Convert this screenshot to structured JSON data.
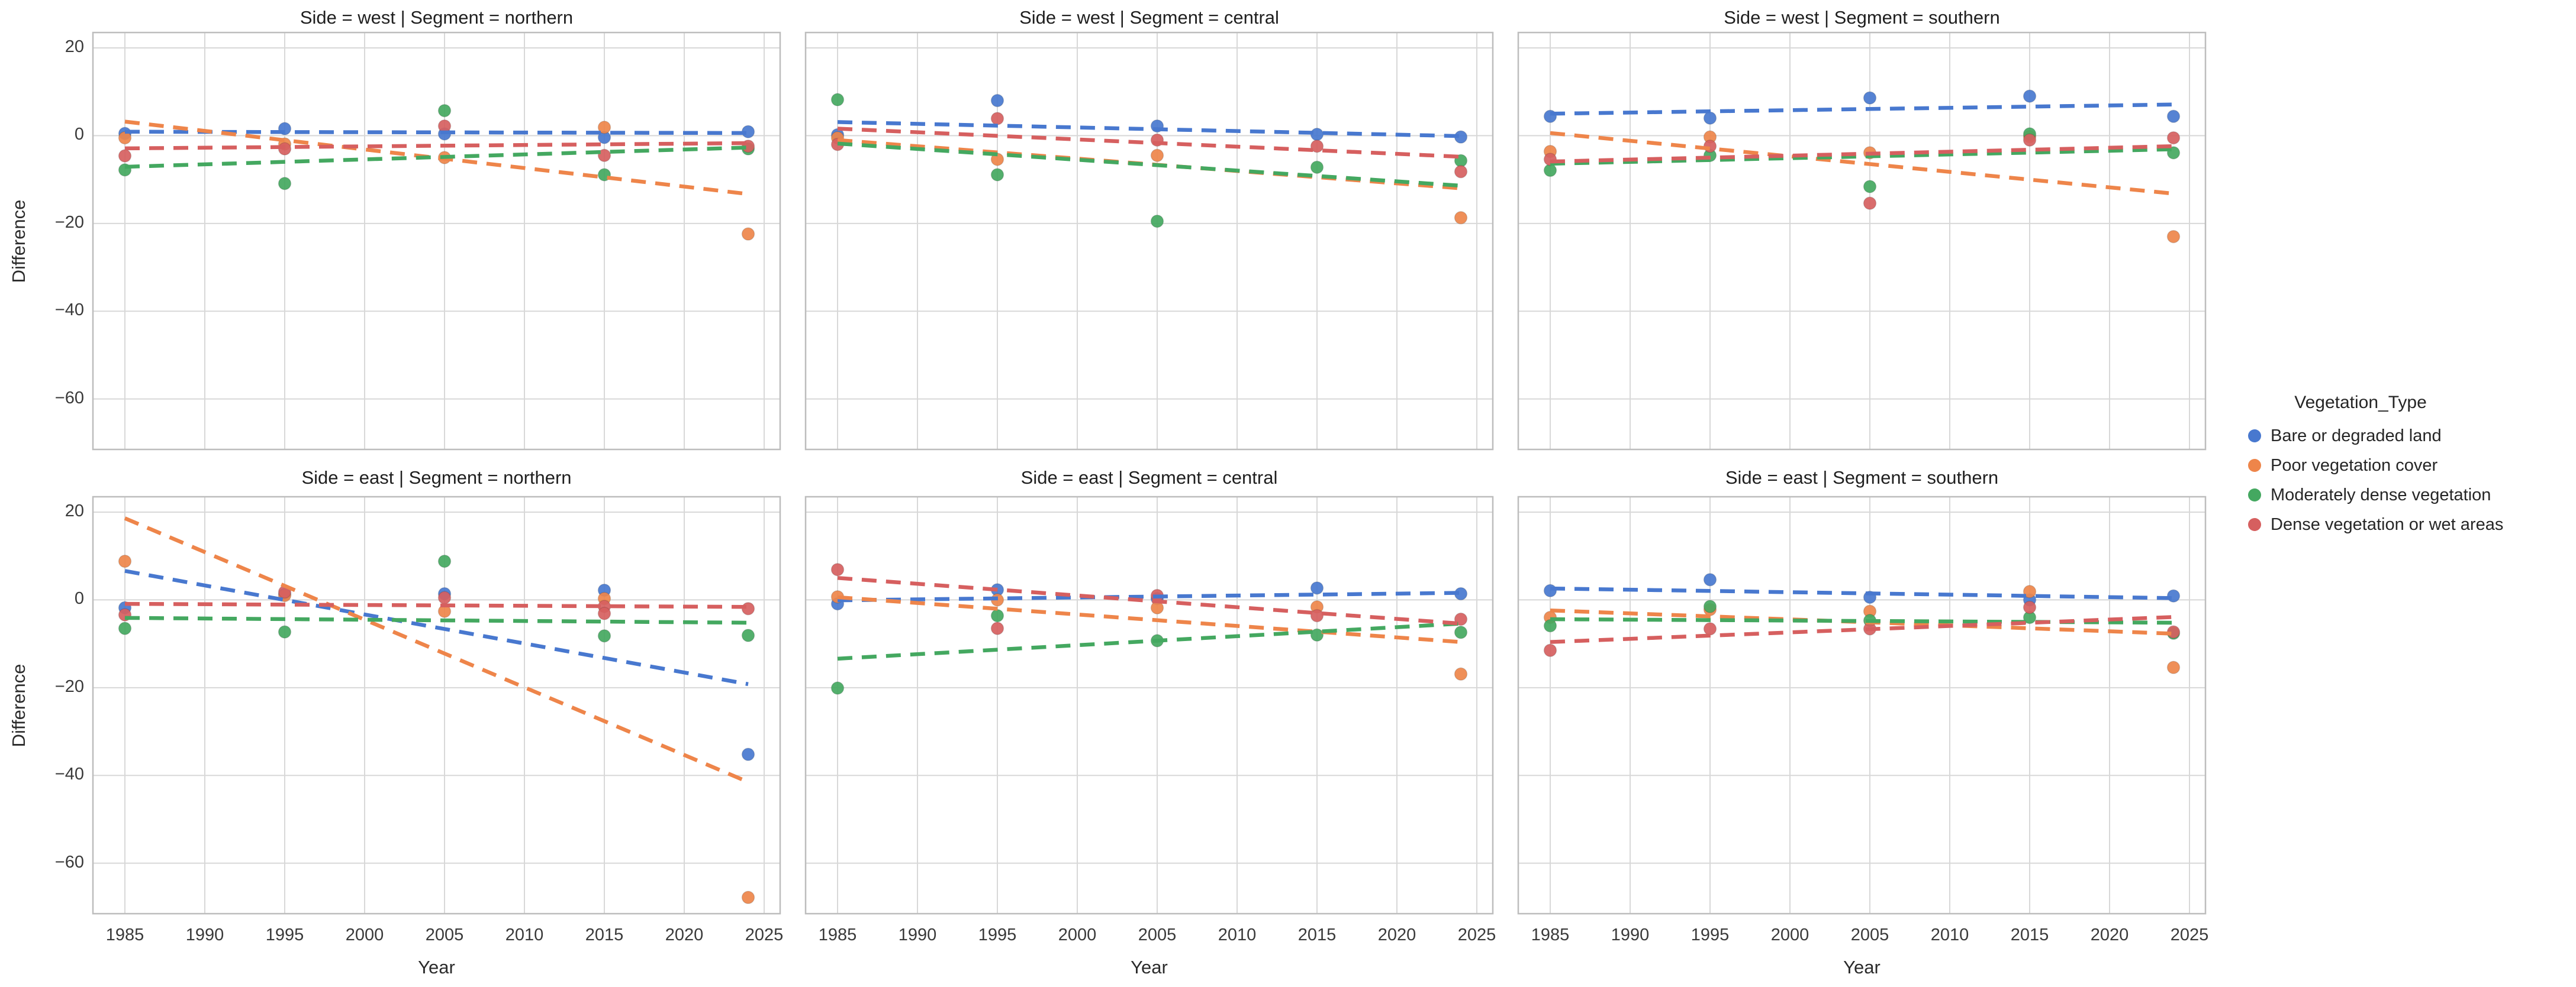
{
  "figure": {
    "background": "#ffffff"
  },
  "legend": {
    "title": "Vegetation_Type",
    "position": "center right",
    "entries": [
      {
        "label": "Bare or degraded land",
        "color": "#4878CF"
      },
      {
        "label": "Poor vegetation cover",
        "color": "#EE854A"
      },
      {
        "label": "Moderately dense vegetation",
        "color": "#44A860"
      },
      {
        "label": "Dense vegetation or wet areas",
        "color": "#D65F5F"
      }
    ]
  },
  "chart_data": {
    "type": "scatter",
    "subtype": "faceted scatter with dashed linear trend lines (seaborn lmplot style)",
    "x_label": "Year",
    "y_label": "Difference",
    "x_ticks": [
      1985,
      1990,
      1995,
      2000,
      2005,
      2010,
      2015,
      2020,
      2025
    ],
    "y_ticks": [
      20,
      0,
      -20,
      -40,
      -60
    ],
    "xlim": [
      1983,
      2026
    ],
    "ylim": [
      -71.5,
      23.5
    ],
    "grid": true,
    "grid_color": "#d8d8d8",
    "spine_color": "#bdbdbd",
    "panels": [
      {
        "side": "west",
        "segment": "northern",
        "title": "Side = west | Segment = northern",
        "series": [
          {
            "key": "bare",
            "name": "Bare or degraded land",
            "color": "#4878CF",
            "points": [
              [
                1985,
                0.5
              ],
              [
                1995,
                1.6
              ],
              [
                2005,
                0.4
              ],
              [
                2015,
                -0.4
              ],
              [
                2024,
                0.9
              ]
            ],
            "trend": {
              "x": [
                1985,
                2024
              ],
              "y": [
                0.9,
                0.6
              ]
            }
          },
          {
            "key": "poor",
            "name": "Poor vegetation cover",
            "color": "#EE854A",
            "points": [
              [
                1985,
                -0.5
              ],
              [
                1995,
                -1.9
              ],
              [
                2005,
                -5.0
              ],
              [
                2015,
                1.9
              ],
              [
                2024,
                -22.4
              ]
            ],
            "trend": {
              "x": [
                1985,
                2024
              ],
              "y": [
                3.2,
                -13.3
              ]
            }
          },
          {
            "key": "moderate",
            "name": "Moderately dense vegetation",
            "color": "#44A860",
            "points": [
              [
                1985,
                -7.8
              ],
              [
                1995,
                -10.9
              ],
              [
                2005,
                5.7
              ],
              [
                2015,
                -8.9
              ],
              [
                2024,
                -3.0
              ]
            ],
            "trend": {
              "x": [
                1985,
                2024
              ],
              "y": [
                -7.1,
                -2.7
              ]
            }
          },
          {
            "key": "dense",
            "name": "Dense vegetation or wet areas",
            "color": "#D65F5F",
            "points": [
              [
                1985,
                -4.6
              ],
              [
                1995,
                -3.0
              ],
              [
                2005,
                2.2
              ],
              [
                2015,
                -4.5
              ],
              [
                2024,
                -2.4
              ]
            ],
            "trend": {
              "x": [
                1985,
                2024
              ],
              "y": [
                -2.9,
                -1.7
              ]
            }
          }
        ]
      },
      {
        "side": "west",
        "segment": "central",
        "title": "Side = west | Segment = central",
        "series": [
          {
            "key": "bare",
            "name": "Bare or degraded land",
            "color": "#4878CF",
            "points": [
              [
                1985,
                0.2
              ],
              [
                1995,
                8.0
              ],
              [
                2005,
                2.2
              ],
              [
                2015,
                0.3
              ],
              [
                2024,
                -0.3
              ]
            ],
            "trend": {
              "x": [
                1985,
                2024
              ],
              "y": [
                3.1,
                -0.1
              ]
            }
          },
          {
            "key": "poor",
            "name": "Poor vegetation cover",
            "color": "#EE854A",
            "points": [
              [
                1985,
                -0.5
              ],
              [
                1995,
                -5.4
              ],
              [
                2005,
                -4.5
              ],
              [
                2024,
                -18.7
              ]
            ],
            "trend": {
              "x": [
                1985,
                2024
              ],
              "y": [
                -1.0,
                -12.0
              ]
            }
          },
          {
            "key": "moderate",
            "name": "Moderately dense vegetation",
            "color": "#44A860",
            "points": [
              [
                1985,
                8.2
              ],
              [
                1995,
                -8.9
              ],
              [
                2005,
                -19.5
              ],
              [
                2015,
                -7.2
              ],
              [
                2024,
                -5.7
              ]
            ],
            "trend": {
              "x": [
                1985,
                2024
              ],
              "y": [
                -1.8,
                -11.4
              ]
            }
          },
          {
            "key": "dense",
            "name": "Dense vegetation or wet areas",
            "color": "#D65F5F",
            "points": [
              [
                1985,
                -2.0
              ],
              [
                1995,
                3.9
              ],
              [
                2005,
                -1.0
              ],
              [
                2015,
                -2.4
              ],
              [
                2024,
                -8.2
              ]
            ],
            "trend": {
              "x": [
                1985,
                2024
              ],
              "y": [
                1.6,
                -4.8
              ]
            }
          }
        ]
      },
      {
        "side": "west",
        "segment": "southern",
        "title": "Side = west | Segment = southern",
        "series": [
          {
            "key": "bare",
            "name": "Bare or degraded land",
            "color": "#4878CF",
            "points": [
              [
                1985,
                4.4
              ],
              [
                1995,
                4.0
              ],
              [
                2005,
                8.6
              ],
              [
                2015,
                9.0
              ],
              [
                2024,
                4.4
              ]
            ],
            "trend": {
              "x": [
                1985,
                2024
              ],
              "y": [
                5.0,
                7.1
              ]
            }
          },
          {
            "key": "poor",
            "name": "Poor vegetation cover",
            "color": "#EE854A",
            "points": [
              [
                1985,
                -3.6
              ],
              [
                1995,
                -0.3
              ],
              [
                2005,
                -3.9
              ],
              [
                2015,
                -0.2
              ],
              [
                2024,
                -23.0
              ]
            ],
            "trend": {
              "x": [
                1985,
                2024
              ],
              "y": [
                0.6,
                -13.2
              ]
            }
          },
          {
            "key": "moderate",
            "name": "Moderately dense vegetation",
            "color": "#44A860",
            "points": [
              [
                1985,
                -7.9
              ],
              [
                1995,
                -4.5
              ],
              [
                2005,
                -11.6
              ],
              [
                2015,
                0.4
              ],
              [
                2024,
                -3.9
              ]
            ],
            "trend": {
              "x": [
                1985,
                2024
              ],
              "y": [
                -6.4,
                -3.1
              ]
            }
          },
          {
            "key": "dense",
            "name": "Dense vegetation or wet areas",
            "color": "#D65F5F",
            "points": [
              [
                1985,
                -5.4
              ],
              [
                1995,
                -2.4
              ],
              [
                2005,
                -15.4
              ],
              [
                2015,
                -1.0
              ],
              [
                2024,
                -0.5
              ]
            ],
            "trend": {
              "x": [
                1985,
                2024
              ],
              "y": [
                -5.9,
                -2.4
              ]
            }
          }
        ]
      },
      {
        "side": "east",
        "segment": "northern",
        "title": "Side = east | Segment = northern",
        "series": [
          {
            "key": "bare",
            "name": "Bare or degraded land",
            "color": "#4878CF",
            "points": [
              [
                1985,
                -1.8
              ],
              [
                1995,
                1.3
              ],
              [
                2005,
                1.4
              ],
              [
                2015,
                2.2
              ],
              [
                2024,
                -35.2
              ]
            ],
            "trend": {
              "x": [
                1985,
                2024
              ],
              "y": [
                6.6,
                -19.2
              ]
            }
          },
          {
            "key": "poor",
            "name": "Poor vegetation cover",
            "color": "#EE854A",
            "points": [
              [
                1985,
                8.8
              ],
              [
                1995,
                1.0
              ],
              [
                2005,
                -2.6
              ],
              [
                2015,
                0.3
              ],
              [
                2024,
                -67.8
              ]
            ],
            "trend": {
              "x": [
                1985,
                2024
              ],
              "y": [
                18.6,
                -41.5
              ]
            }
          },
          {
            "key": "moderate",
            "name": "Moderately dense vegetation",
            "color": "#44A860",
            "points": [
              [
                1985,
                -6.5
              ],
              [
                1995,
                -7.3
              ],
              [
                2005,
                8.8
              ],
              [
                2015,
                -8.2
              ],
              [
                2024,
                -8.1
              ]
            ],
            "trend": {
              "x": [
                1985,
                2024
              ],
              "y": [
                -4.1,
                -5.2
              ]
            }
          },
          {
            "key": "dense",
            "name": "Dense vegetation or wet areas",
            "color": "#D65F5F",
            "points": [
              [
                1985,
                -3.4
              ],
              [
                1995,
                1.8
              ],
              [
                2005,
                0.5
              ],
              [
                2015,
                -1.5
              ],
              [
                2015,
                -3.1
              ],
              [
                2024,
                -2.0
              ]
            ],
            "trend": {
              "x": [
                1985,
                2024
              ],
              "y": [
                -0.9,
                -1.6
              ]
            }
          }
        ]
      },
      {
        "side": "east",
        "segment": "central",
        "title": "Side = east | Segment = central",
        "series": [
          {
            "key": "bare",
            "name": "Bare or degraded land",
            "color": "#4878CF",
            "points": [
              [
                1985,
                -0.9
              ],
              [
                1995,
                2.3
              ],
              [
                2005,
                0.3
              ],
              [
                2015,
                2.7
              ],
              [
                2024,
                1.4
              ]
            ],
            "trend": {
              "x": [
                1985,
                2024
              ],
              "y": [
                -0.1,
                1.6
              ]
            }
          },
          {
            "key": "poor",
            "name": "Poor vegetation cover",
            "color": "#EE854A",
            "points": [
              [
                1985,
                0.7
              ],
              [
                1995,
                0.0
              ],
              [
                2005,
                -1.8
              ],
              [
                2015,
                -1.6
              ],
              [
                2024,
                -16.9
              ]
            ],
            "trend": {
              "x": [
                1985,
                2024
              ],
              "y": [
                0.6,
                -9.6
              ]
            }
          },
          {
            "key": "moderate",
            "name": "Moderately dense vegetation",
            "color": "#44A860",
            "points": [
              [
                1985,
                -20.1
              ],
              [
                1995,
                -3.6
              ],
              [
                2005,
                -9.3
              ],
              [
                2015,
                -8.0
              ],
              [
                2024,
                -7.4
              ]
            ],
            "trend": {
              "x": [
                1985,
                2024
              ],
              "y": [
                -13.4,
                -5.4
              ]
            }
          },
          {
            "key": "dense",
            "name": "Dense vegetation or wet areas",
            "color": "#D65F5F",
            "points": [
              [
                1985,
                6.9
              ],
              [
                1995,
                -6.5
              ],
              [
                2005,
                1.0
              ],
              [
                2015,
                -3.6
              ],
              [
                2024,
                -4.4
              ]
            ],
            "trend": {
              "x": [
                1985,
                2024
              ],
              "y": [
                5.0,
                -5.4
              ]
            }
          }
        ]
      },
      {
        "side": "east",
        "segment": "southern",
        "title": "Side = east | Segment = southern",
        "series": [
          {
            "key": "bare",
            "name": "Bare or degraded land",
            "color": "#4878CF",
            "points": [
              [
                1985,
                2.1
              ],
              [
                1995,
                4.6
              ],
              [
                2005,
                0.6
              ],
              [
                2015,
                0.0
              ],
              [
                2024,
                0.9
              ]
            ],
            "trend": {
              "x": [
                1985,
                2024
              ],
              "y": [
                2.6,
                0.4
              ]
            }
          },
          {
            "key": "poor",
            "name": "Poor vegetation cover",
            "color": "#EE854A",
            "points": [
              [
                1985,
                -4.0
              ],
              [
                1995,
                -2.2
              ],
              [
                2005,
                -2.6
              ],
              [
                2015,
                1.9
              ],
              [
                2024,
                -15.4
              ]
            ],
            "trend": {
              "x": [
                1985,
                2024
              ],
              "y": [
                -2.4,
                -7.7
              ]
            }
          },
          {
            "key": "moderate",
            "name": "Moderately dense vegetation",
            "color": "#44A860",
            "points": [
              [
                1985,
                -5.9
              ],
              [
                1995,
                -1.5
              ],
              [
                2005,
                -4.7
              ],
              [
                2015,
                -4.0
              ],
              [
                2024,
                -7.6
              ]
            ],
            "trend": {
              "x": [
                1985,
                2024
              ],
              "y": [
                -4.4,
                -5.2
              ]
            }
          },
          {
            "key": "dense",
            "name": "Dense vegetation or wet areas",
            "color": "#D65F5F",
            "points": [
              [
                1985,
                -11.5
              ],
              [
                1995,
                -6.6
              ],
              [
                2005,
                -6.6
              ],
              [
                2015,
                -1.7
              ],
              [
                2024,
                -7.3
              ]
            ],
            "trend": {
              "x": [
                1985,
                2024
              ],
              "y": [
                -9.6,
                -3.9
              ]
            }
          }
        ]
      }
    ]
  }
}
